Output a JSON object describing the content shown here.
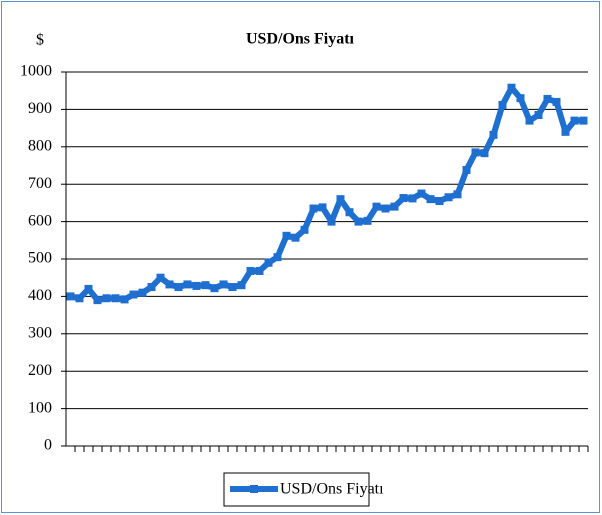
{
  "chart_data": {
    "type": "line",
    "title": "USD/Ons Fiyatı",
    "y_label": "$",
    "categories": [
      null,
      null,
      null,
      null,
      null,
      null,
      null,
      null,
      null,
      null,
      null,
      null,
      null,
      null,
      null,
      null,
      null,
      null,
      null,
      null,
      null,
      null,
      null,
      null,
      null,
      null,
      null,
      null,
      null,
      null,
      null,
      null,
      null,
      null,
      null,
      null,
      null,
      null,
      null,
      null,
      null,
      null,
      null,
      null,
      null,
      null,
      null,
      null,
      null,
      null,
      null,
      null,
      null,
      null,
      null,
      null,
      null,
      null
    ],
    "series": [
      {
        "name": "USD/Ons Fiyatı",
        "color": "#1f6fd0",
        "values": [
          400,
          395,
          420,
          390,
          395,
          395,
          392,
          405,
          410,
          425,
          450,
          432,
          425,
          432,
          428,
          430,
          422,
          432,
          425,
          430,
          468,
          468,
          490,
          505,
          562,
          557,
          578,
          635,
          638,
          600,
          660,
          625,
          600,
          602,
          640,
          635,
          640,
          663,
          662,
          675,
          660,
          655,
          665,
          673,
          738,
          785,
          783,
          832,
          912,
          958,
          930,
          870,
          885,
          928,
          920,
          840,
          870,
          870
        ]
      }
    ],
    "ylim": [
      0,
      1000
    ],
    "yticks": [
      0,
      100,
      200,
      300,
      400,
      500,
      600,
      700,
      800,
      900,
      1000
    ],
    "grid": true,
    "legend": "bottom"
  }
}
